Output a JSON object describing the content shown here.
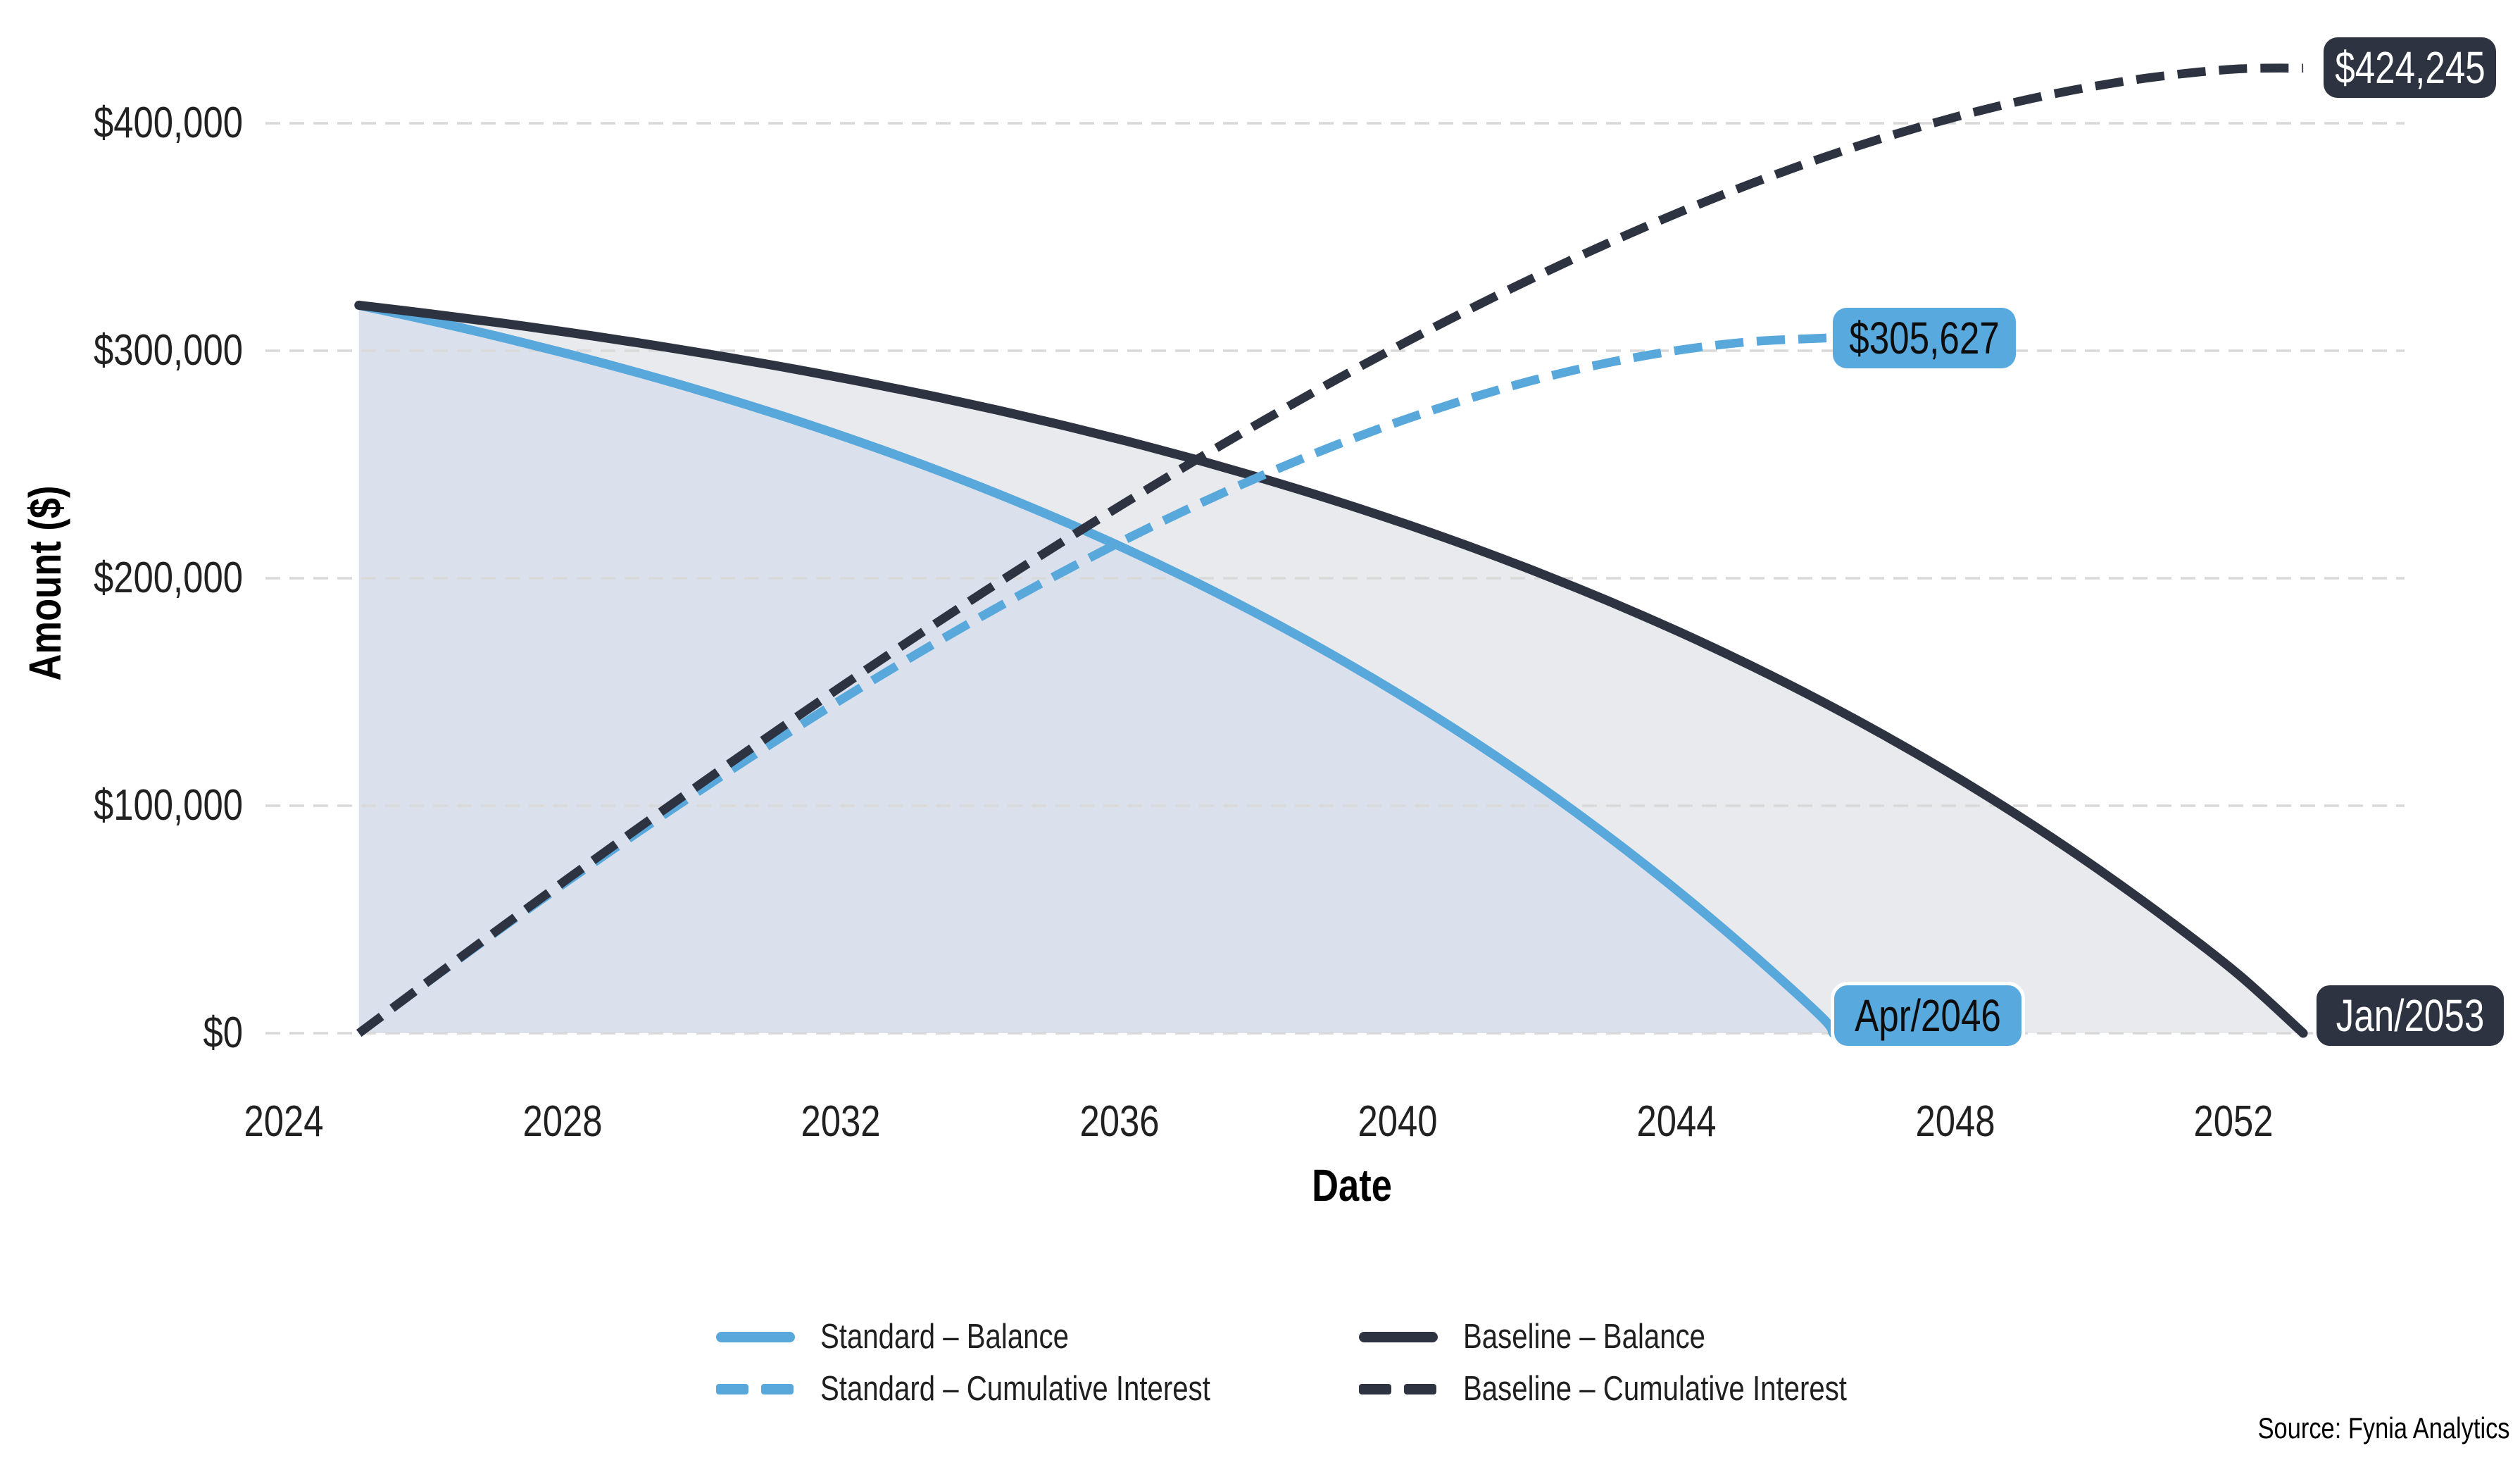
{
  "chart_data": {
    "type": "line",
    "title": "",
    "xlabel": "Date",
    "ylabel": "Amount ($)",
    "grid": "horizontal-dashed",
    "legend_position": "bottom-center",
    "x_range": [
      2023.7,
      2054.5
    ],
    "y_range": [
      0,
      440000
    ],
    "x_ticks": [
      "2024",
      "2028",
      "2032",
      "2036",
      "2040",
      "2044",
      "2048",
      "2052"
    ],
    "x_tick_values": [
      2024,
      2028,
      2032,
      2036,
      2040,
      2044,
      2048,
      2052
    ],
    "y_ticks": [
      "$0",
      "$100,000",
      "$200,000",
      "$300,000",
      "$400,000"
    ],
    "y_tick_values": [
      0,
      100000,
      200000,
      300000,
      400000
    ],
    "series": [
      {
        "id": "standard_balance",
        "name": "Standard – Balance",
        "color": "#58a8dc",
        "dash": false,
        "fill_color": "#dae1ec",
        "points": [
          [
            2025.08,
            320000
          ],
          [
            2026.08,
            313379
          ],
          [
            2027.08,
            306266
          ],
          [
            2028.08,
            298623
          ],
          [
            2029.08,
            290411
          ],
          [
            2030.08,
            281588
          ],
          [
            2031.08,
            272109
          ],
          [
            2032.08,
            261924
          ],
          [
            2033.08,
            250982
          ],
          [
            2034.08,
            239225
          ],
          [
            2035.08,
            226592
          ],
          [
            2036.08,
            213021
          ],
          [
            2037.08,
            198439
          ],
          [
            2038.08,
            182772
          ],
          [
            2039.08,
            165938
          ],
          [
            2040.08,
            147852
          ],
          [
            2041.08,
            128420
          ],
          [
            2042.08,
            107542
          ],
          [
            2043.08,
            85109
          ],
          [
            2044.08,
            61007
          ],
          [
            2045.08,
            35113
          ],
          [
            2046.08,
            7290
          ],
          [
            2046.25,
            0
          ]
        ]
      },
      {
        "id": "standard_cumulative_interest",
        "name": "Standard – Cumulative Interest",
        "color": "#58a8dc",
        "dash": true,
        "fill_color": null,
        "points": [
          [
            2025.08,
            0
          ],
          [
            2026.08,
            22824
          ],
          [
            2027.08,
            45156
          ],
          [
            2028.08,
            66958
          ],
          [
            2029.08,
            88191
          ],
          [
            2030.08,
            108812
          ],
          [
            2031.08,
            128778
          ],
          [
            2032.08,
            148038
          ],
          [
            2033.08,
            166541
          ],
          [
            2034.08,
            184229
          ],
          [
            2035.08,
            201041
          ],
          [
            2036.08,
            216915
          ],
          [
            2037.08,
            231778
          ],
          [
            2038.08,
            245555
          ],
          [
            2039.08,
            258166
          ],
          [
            2040.08,
            269525
          ],
          [
            2041.08,
            279538
          ],
          [
            2042.08,
            288105
          ],
          [
            2043.08,
            295117
          ],
          [
            2044.08,
            300460
          ],
          [
            2045.08,
            304011
          ],
          [
            2046.08,
            305500
          ],
          [
            2046.25,
            305627
          ]
        ]
      },
      {
        "id": "baseline_balance",
        "name": "Baseline – Balance",
        "color": "#2e3342",
        "dash": false,
        "fill_color": "#e9eaed",
        "points": [
          [
            2025.08,
            320000
          ],
          [
            2026.08,
            316315
          ],
          [
            2027.08,
            312356
          ],
          [
            2028.08,
            308101
          ],
          [
            2029.08,
            303531
          ],
          [
            2030.08,
            298620
          ],
          [
            2031.08,
            293343
          ],
          [
            2032.08,
            287674
          ],
          [
            2033.08,
            281584
          ],
          [
            2034.08,
            275040
          ],
          [
            2035.08,
            268009
          ],
          [
            2036.08,
            260455
          ],
          [
            2037.08,
            252338
          ],
          [
            2038.08,
            243617
          ],
          [
            2039.08,
            234248
          ],
          [
            2040.08,
            224180
          ],
          [
            2041.08,
            213364
          ],
          [
            2042.08,
            201742
          ],
          [
            2043.08,
            189255
          ],
          [
            2044.08,
            175840
          ],
          [
            2045.08,
            161425
          ],
          [
            2046.08,
            145938
          ],
          [
            2047.08,
            129298
          ],
          [
            2048.08,
            111420
          ],
          [
            2049.08,
            92211
          ],
          [
            2050.08,
            71573
          ],
          [
            2051.08,
            49399
          ],
          [
            2052.08,
            25575
          ],
          [
            2053.0,
            0
          ]
        ]
      },
      {
        "id": "baseline_cumulative_interest",
        "name": "Baseline – Cumulative Interest",
        "color": "#2e3342",
        "dash": true,
        "fill_color": null,
        "points": [
          [
            2025.08,
            0
          ],
          [
            2026.08,
            22920
          ],
          [
            2027.08,
            45566
          ],
          [
            2028.08,
            67916
          ],
          [
            2029.08,
            89950
          ],
          [
            2030.08,
            111644
          ],
          [
            2031.08,
            132972
          ],
          [
            2032.08,
            153908
          ],
          [
            2033.08,
            174423
          ],
          [
            2034.08,
            194484
          ],
          [
            2035.08,
            214057
          ],
          [
            2036.08,
            233108
          ],
          [
            2037.08,
            251596
          ],
          [
            2038.08,
            269480
          ],
          [
            2039.08,
            286716
          ],
          [
            2040.08,
            303253
          ],
          [
            2041.08,
            319041
          ],
          [
            2042.08,
            334024
          ],
          [
            2043.08,
            348142
          ],
          [
            2044.08,
            361332
          ],
          [
            2045.08,
            373522
          ],
          [
            2046.08,
            384640
          ],
          [
            2047.08,
            394605
          ],
          [
            2048.08,
            403331
          ],
          [
            2049.08,
            410727
          ],
          [
            2050.08,
            416694
          ],
          [
            2051.08,
            421125
          ],
          [
            2052.08,
            423906
          ],
          [
            2053.0,
            424245
          ]
        ]
      }
    ],
    "annotations": {
      "baseline_interest_total": {
        "label": "$424,245",
        "x": 2053.0,
        "y": 424245,
        "style": "dark"
      },
      "standard_interest_total": {
        "label": "$305,627",
        "x": 2046.25,
        "y": 305627,
        "style": "blue"
      },
      "standard_payoff": {
        "label": "Apr/2046",
        "x": 2046.25,
        "y": 0,
        "style": "blue-bordered"
      },
      "baseline_payoff": {
        "label": "Jan/2053",
        "x": 2053.0,
        "y": 0,
        "style": "dark-bordered"
      }
    },
    "source": "Source: Fynia Analytics"
  },
  "legend": {
    "items": [
      {
        "label": "Standard – Balance",
        "color": "#58a8dc",
        "dash": false
      },
      {
        "label": "Baseline – Balance",
        "color": "#2e3342",
        "dash": false
      },
      {
        "label": "Standard – Cumulative Interest",
        "color": "#58a8dc",
        "dash": true
      },
      {
        "label": "Baseline – Cumulative Interest",
        "color": "#2e3342",
        "dash": true
      }
    ]
  },
  "colors": {
    "standard": "#58a8dc",
    "baseline": "#2e3342",
    "gridline": "#d9d9d9",
    "fill_between": "#e9eaed",
    "fill_standard": "#dae1ec",
    "badge_blue_bg": "#58a9de",
    "badge_dark_bg": "#2e3342"
  }
}
